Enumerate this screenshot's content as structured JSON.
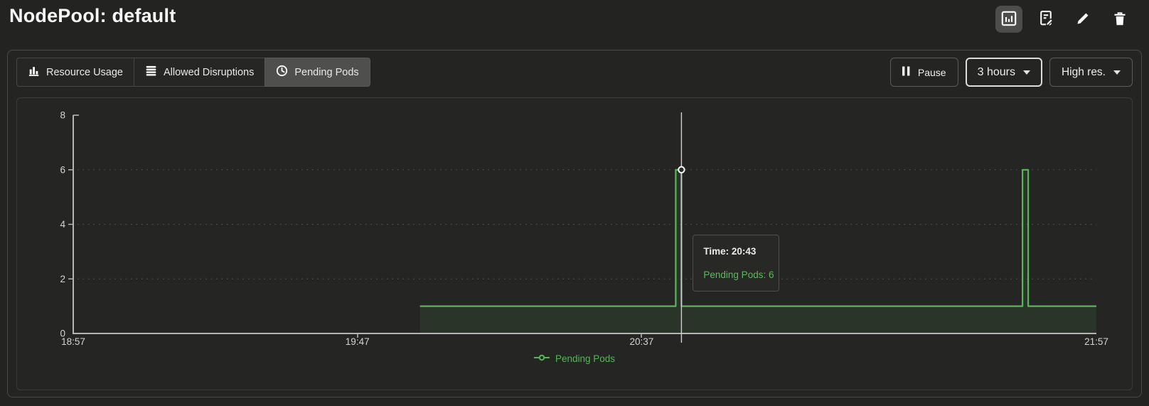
{
  "header": {
    "title": "NodePool: default",
    "actions": [
      {
        "name": "chart-view",
        "icon": "chart-icon",
        "selected": true
      },
      {
        "name": "report-edit",
        "icon": "document-edit-icon",
        "selected": false
      },
      {
        "name": "edit",
        "icon": "pencil-icon",
        "selected": false
      },
      {
        "name": "delete",
        "icon": "trash-icon",
        "selected": false
      }
    ]
  },
  "toolbar": {
    "tabs": [
      {
        "label": "Resource Usage",
        "icon": "bar-chart-icon",
        "active": false
      },
      {
        "label": "Allowed Disruptions",
        "icon": "stack-icon",
        "active": false
      },
      {
        "label": "Pending Pods",
        "icon": "clock-icon",
        "active": true
      }
    ],
    "pause_label": "Pause",
    "range_label": "3 hours",
    "resolution_label": "High res."
  },
  "chart_data": {
    "type": "line",
    "title": "",
    "xlabel": "",
    "ylabel": "",
    "x_range": [
      "18:57",
      "21:57"
    ],
    "ylim": [
      0,
      8
    ],
    "y_ticks": [
      0,
      2,
      4,
      6,
      8
    ],
    "x_ticks": [
      "18:57",
      "19:47",
      "20:37",
      "21:57"
    ],
    "grid": "horizontal-dashed",
    "legend_position": "bottom-center",
    "interpolation": "step-after",
    "series": [
      {
        "name": "Pending Pods",
        "color": "#57b857",
        "points": [
          [
            "19:58",
            1
          ],
          [
            "20:43",
            6
          ],
          [
            "20:44",
            1
          ],
          [
            "21:44",
            6
          ],
          [
            "21:45",
            1
          ],
          [
            "21:57",
            1
          ]
        ]
      }
    ]
  },
  "cursor": {
    "time": "20:43",
    "value": 6
  },
  "tooltip": {
    "time_label": "Time: 20:43",
    "value_label": "Pending Pods: 6"
  },
  "colors": {
    "series_green": "#57b857",
    "crosshair": "#cfcfcf",
    "axis": "#b4b4b4",
    "selected_button_bg": "#4d4d4b"
  }
}
